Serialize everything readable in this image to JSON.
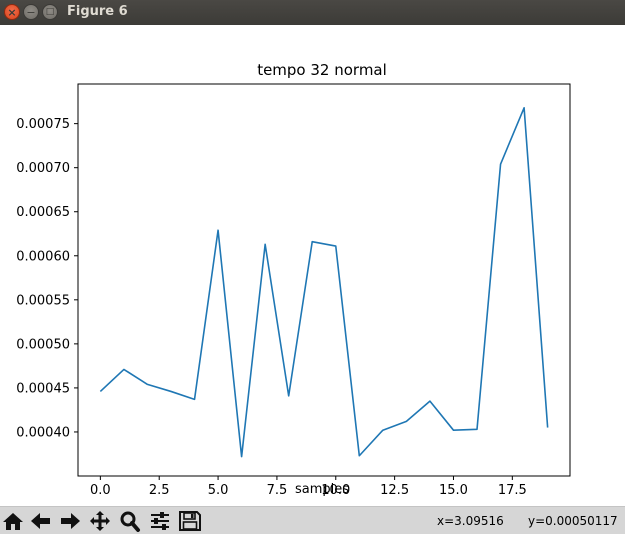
{
  "window": {
    "title": "Figure 6",
    "close_glyph": "×",
    "minimize_glyph": "−",
    "maximize_glyph": "□"
  },
  "toolbar": {
    "buttons": [
      {
        "name": "home-icon",
        "label": "Home"
      },
      {
        "name": "back-icon",
        "label": "Back"
      },
      {
        "name": "forward-icon",
        "label": "Forward"
      },
      {
        "name": "pan-icon",
        "label": "Pan"
      },
      {
        "name": "zoom-icon",
        "label": "Zoom"
      },
      {
        "name": "configure-subplots-icon",
        "label": "Subplots"
      },
      {
        "name": "save-icon",
        "label": "Save"
      }
    ],
    "x_readout": "x=3.09516",
    "y_readout": "y=0.00050117"
  },
  "chart_data": {
    "type": "line",
    "title": "tempo 32 normal",
    "xlabel": "samples",
    "ylabel": "",
    "xlim": [
      -0.95,
      19.95
    ],
    "ylim": [
      0.00035,
      0.000795
    ],
    "x_ticks": [
      0.0,
      2.5,
      5.0,
      7.5,
      10.0,
      12.5,
      15.0,
      17.5
    ],
    "x_tick_labels": [
      "0.0",
      "2.5",
      "5.0",
      "7.5",
      "10.0",
      "12.5",
      "15.0",
      "17.5"
    ],
    "y_ticks": [
      0.0004,
      0.00045,
      0.0005,
      0.00055,
      0.0006,
      0.00065,
      0.0007,
      0.00075
    ],
    "y_tick_labels": [
      "0.00040",
      "0.00045",
      "0.00050",
      "0.00055",
      "0.00060",
      "0.00065",
      "0.00070",
      "0.00075"
    ],
    "grid": false,
    "line_color": "#1f77b4",
    "series": [
      {
        "x": [
          0,
          1,
          2,
          3,
          4,
          5,
          6,
          7,
          8,
          9,
          10,
          11,
          12,
          13,
          14,
          15,
          16,
          17,
          18,
          19
        ],
        "values": [
          0.000446,
          0.000471,
          0.000454,
          0.000446,
          0.000437,
          0.000629,
          0.000372,
          0.000613,
          0.000441,
          0.000616,
          0.000611,
          0.000373,
          0.000402,
          0.000412,
          0.000435,
          0.000402,
          0.000403,
          0.000704,
          0.000768,
          0.000405
        ]
      }
    ]
  }
}
